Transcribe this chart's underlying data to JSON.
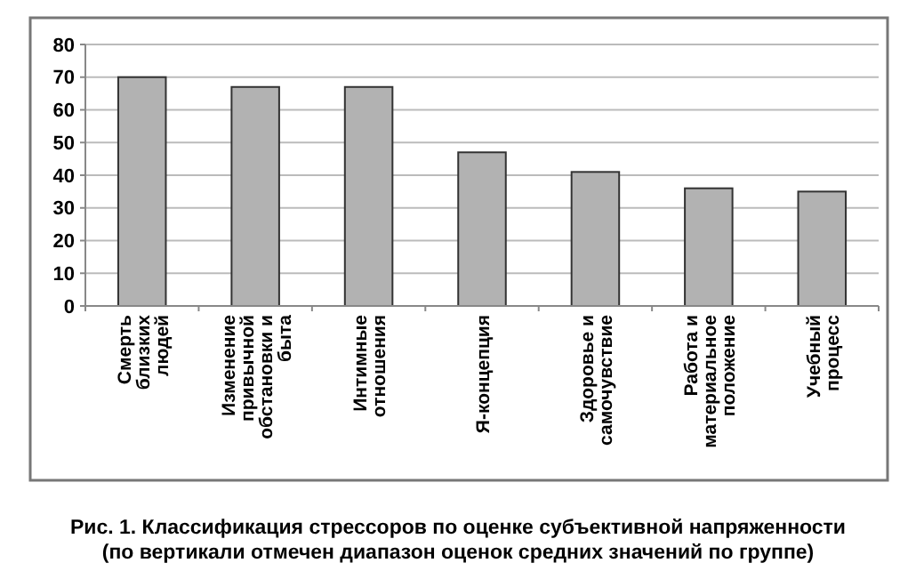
{
  "chart_data": {
    "type": "bar",
    "title": "Рис. 1. Классификация стрессоров по оценке субъективной напряженности",
    "subtitle": "(по вертикали отмечен диапазон оценок средних значений по группе)",
    "categories": [
      "Смерть близких людей",
      "Изменение привычной обстановки и быта",
      "Интимные отношения",
      "Я-концепция",
      "Здоровье и самочувствие",
      "Работа и материальное положение",
      "Учебный процесс"
    ],
    "values": [
      70,
      67,
      67,
      47,
      41,
      36,
      35
    ],
    "color": "#b2b2b2",
    "ylim": [
      0,
      80
    ],
    "yticks": [
      0,
      10,
      20,
      30,
      40,
      50,
      60,
      70,
      80
    ],
    "grid": "y"
  }
}
